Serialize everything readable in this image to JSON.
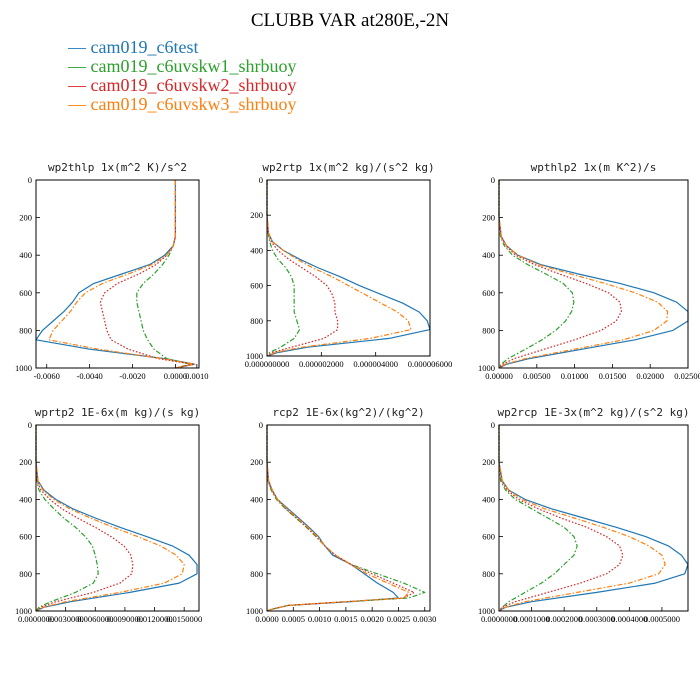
{
  "title": "CLUBB VAR at280E,-2N",
  "legend": [
    {
      "name": "cam019_c6test",
      "color": "#1f77b4"
    },
    {
      "name": "cam019_c6uvskw1_shrbuoy",
      "color": "#2ca02c"
    },
    {
      "name": "cam019_c6uvskw2_shrbuoy",
      "color": "#d62728"
    },
    {
      "name": "cam019_c6uvskw3_shrbuoy",
      "color": "#ff7f0e"
    }
  ],
  "chart_data": [
    {
      "type": "line",
      "title": "wp2thlp  1x(m^2 K)/s^2",
      "xlim": [
        -0.0065,
        0.0011
      ],
      "ylim": [
        0,
        1000
      ],
      "y_reversed": true,
      "xticks": [
        -0.006,
        -0.004,
        -0.002,
        0.0,
        0.001
      ],
      "xtick_labels": [
        "-0.0060",
        "-0.0040",
        "-0.0020",
        "0.0000",
        "0.0010"
      ],
      "yticks": [
        0,
        200,
        400,
        600,
        800,
        1000
      ],
      "ytick_labels": [
        "0",
        "200",
        "400",
        "600",
        "800",
        "1000"
      ],
      "y": [
        0,
        100,
        200,
        300,
        350,
        400,
        450,
        500,
        550,
        600,
        650,
        700,
        750,
        800,
        850,
        900,
        950,
        980,
        1000
      ],
      "series": [
        {
          "name": "cam019_c6test",
          "color": "#1f77b4",
          "dash": "solid",
          "x": [
            0,
            0,
            0,
            0,
            -0.0001,
            -0.0005,
            -0.0012,
            -0.0025,
            -0.0038,
            -0.0045,
            -0.0048,
            -0.0052,
            -0.0057,
            -0.0062,
            -0.0065,
            -0.004,
            -0.0005,
            0.0009,
            0.0
          ]
        },
        {
          "name": "cam019_c6uvskw1_shrbuoy",
          "color": "#2ca02c",
          "dash": "dashdot",
          "x": [
            0,
            0,
            0,
            0,
            -0.0001,
            -0.0003,
            -0.0006,
            -0.001,
            -0.0015,
            -0.0018,
            -0.0018,
            -0.0017,
            -0.0016,
            -0.0015,
            -0.0013,
            -0.001,
            -0.0004,
            0.0007,
            0.0
          ]
        },
        {
          "name": "cam019_c6uvskw2_shrbuoy",
          "color": "#d62728",
          "dash": "dotted",
          "x": [
            0,
            0,
            0,
            0,
            -0.0001,
            -0.0004,
            -0.0009,
            -0.0017,
            -0.0027,
            -0.0033,
            -0.0035,
            -0.0034,
            -0.0033,
            -0.0032,
            -0.003,
            -0.0022,
            -0.0008,
            0.0008,
            0.0
          ]
        },
        {
          "name": "cam019_c6uvskw3_shrbuoy",
          "color": "#ff7f0e",
          "dash": "dashdot",
          "x": [
            0,
            0,
            0,
            0,
            -0.0001,
            -0.0004,
            -0.0011,
            -0.0022,
            -0.0034,
            -0.0042,
            -0.0046,
            -0.0049,
            -0.0053,
            -0.0057,
            -0.0059,
            -0.0036,
            -0.0006,
            0.0009,
            0.0
          ]
        }
      ]
    },
    {
      "type": "line",
      "title": "wp2rtp  1x(m^2 kg)/(s^2 kg)",
      "xlim": [
        0,
        6e-06
      ],
      "ylim": [
        0,
        1000
      ],
      "y_reversed": true,
      "xticks": [
        0,
        2e-06,
        4e-06,
        6e-06
      ],
      "xtick_labels": [
        "0.000000000",
        "0.000002000",
        "0.000004000",
        "0.000006000"
      ],
      "yticks": [
        0,
        200,
        400,
        600,
        800,
        1000
      ],
      "ytick_labels": [
        "0",
        "200",
        "400",
        "600",
        "800",
        "1000"
      ],
      "y": [
        0,
        200,
        300,
        350,
        400,
        450,
        500,
        550,
        600,
        650,
        700,
        750,
        800,
        850,
        900,
        950,
        980,
        1000
      ],
      "series": [
        {
          "name": "cam019_c6test",
          "color": "#1f77b4",
          "dash": "solid",
          "x": [
            0,
            0,
            5e-08,
            2e-07,
            6e-07,
            1.2e-06,
            1.9e-06,
            2.7e-06,
            3.4e-06,
            4.2e-06,
            5e-06,
            5.6e-06,
            5.9e-06,
            6e-06,
            4.5e-06,
            1.5e-06,
            4e-07,
            0
          ]
        },
        {
          "name": "cam019_c6uvskw1_shrbuoy",
          "color": "#2ca02c",
          "dash": "dashdot",
          "x": [
            0,
            0,
            4e-08,
            1e-07,
            2e-07,
            4e-07,
            7e-07,
            9e-07,
            1e-06,
            1e-06,
            1e-06,
            1e-06,
            1.1e-06,
            1.2e-06,
            1e-06,
            5e-07,
            1e-07,
            0
          ]
        },
        {
          "name": "cam019_c6uvskw2_shrbuoy",
          "color": "#d62728",
          "dash": "dotted",
          "x": [
            0,
            0,
            5e-08,
            1.5e-07,
            4e-07,
            8e-07,
            1.3e-06,
            1.8e-06,
            2.2e-06,
            2.4e-06,
            2.5e-06,
            2.5e-06,
            2.6e-06,
            2.6e-06,
            2.1e-06,
            9e-07,
            2e-07,
            0
          ]
        },
        {
          "name": "cam019_c6uvskw3_shrbuoy",
          "color": "#ff7f0e",
          "dash": "dashdot",
          "x": [
            0,
            0,
            5e-08,
            2e-07,
            6e-07,
            1.1e-06,
            1.7e-06,
            2.4e-06,
            3e-06,
            3.6e-06,
            4.2e-06,
            4.8e-06,
            5.2e-06,
            5.3e-06,
            3.8e-06,
            1.3e-06,
            3e-07,
            0
          ]
        }
      ]
    },
    {
      "type": "line",
      "title": "wpthlp2  1x(m K^2)/s",
      "xlim": [
        0,
        0.025
      ],
      "ylim": [
        0,
        1000
      ],
      "y_reversed": true,
      "xticks": [
        0,
        0.005,
        0.01,
        0.015,
        0.02,
        0.025
      ],
      "xtick_labels": [
        "0.00000",
        "0.00500",
        "0.01000",
        "0.01500",
        "0.02000",
        "0.02500"
      ],
      "yticks": [
        0,
        200,
        400,
        600,
        800,
        1000
      ],
      "ytick_labels": [
        "0",
        "200",
        "400",
        "600",
        "800",
        "1000"
      ],
      "y": [
        0,
        200,
        300,
        350,
        400,
        450,
        500,
        550,
        600,
        650,
        700,
        750,
        800,
        850,
        900,
        950,
        980,
        1000
      ],
      "series": [
        {
          "name": "cam019_c6test",
          "color": "#1f77b4",
          "dash": "solid",
          "x": [
            0,
            0,
            0.0003,
            0.001,
            0.0025,
            0.0055,
            0.0105,
            0.016,
            0.0205,
            0.0235,
            0.025,
            0.025,
            0.023,
            0.018,
            0.011,
            0.004,
            0.001,
            0
          ]
        },
        {
          "name": "cam019_c6uvskw1_shrbuoy",
          "color": "#2ca02c",
          "dash": "dashdot",
          "x": [
            0,
            0,
            0.0002,
            0.0007,
            0.0018,
            0.0038,
            0.0062,
            0.0085,
            0.0097,
            0.0099,
            0.0096,
            0.0088,
            0.0075,
            0.0057,
            0.0035,
            0.0012,
            0.0003,
            0
          ]
        },
        {
          "name": "cam019_c6uvskw2_shrbuoy",
          "color": "#d62728",
          "dash": "dotted",
          "x": [
            0,
            0,
            0.0003,
            0.0009,
            0.0022,
            0.0047,
            0.008,
            0.0115,
            0.0145,
            0.016,
            0.0162,
            0.0155,
            0.0135,
            0.01,
            0.006,
            0.002,
            0.0005,
            0
          ]
        },
        {
          "name": "cam019_c6uvskw3_shrbuoy",
          "color": "#ff7f0e",
          "dash": "dashdot",
          "x": [
            0,
            0,
            0.0003,
            0.001,
            0.0025,
            0.0052,
            0.0095,
            0.014,
            0.018,
            0.021,
            0.0223,
            0.0222,
            0.0205,
            0.0165,
            0.01,
            0.0035,
            0.0008,
            0
          ]
        }
      ]
    },
    {
      "type": "line",
      "title": "wprtp2  1E-6x(m kg)/(s kg)",
      "xlim": [
        0,
        0.0165
      ],
      "ylim": [
        0,
        1000
      ],
      "y_reversed": true,
      "xticks": [
        0,
        0.003,
        0.006,
        0.009,
        0.012,
        0.015
      ],
      "xtick_labels": [
        "0.0000000",
        "0.0030000",
        "0.0060000",
        "0.0090000",
        "0.0120000",
        "0.0150000"
      ],
      "yticks": [
        0,
        200,
        400,
        600,
        800,
        1000
      ],
      "ytick_labels": [
        "0",
        "200",
        "400",
        "600",
        "800",
        "1000"
      ],
      "y": [
        0,
        200,
        300,
        350,
        400,
        450,
        500,
        550,
        600,
        650,
        700,
        750,
        800,
        850,
        900,
        950,
        980,
        1000
      ],
      "series": [
        {
          "name": "cam019_c6test",
          "color": "#1f77b4",
          "dash": "solid",
          "x": [
            0,
            0,
            0.0002,
            0.0008,
            0.002,
            0.0037,
            0.006,
            0.0085,
            0.0112,
            0.0138,
            0.0155,
            0.0163,
            0.0163,
            0.0145,
            0.0095,
            0.0035,
            0.0008,
            0
          ]
        },
        {
          "name": "cam019_c6uvskw1_shrbuoy",
          "color": "#2ca02c",
          "dash": "dashdot",
          "x": [
            0,
            0,
            0.0001,
            0.0003,
            0.0009,
            0.0018,
            0.0028,
            0.004,
            0.005,
            0.0057,
            0.006,
            0.0062,
            0.0063,
            0.0058,
            0.004,
            0.0015,
            0.0003,
            0
          ]
        },
        {
          "name": "cam019_c6uvskw2_shrbuoy",
          "color": "#d62728",
          "dash": "dotted",
          "x": [
            0,
            0,
            0.0001,
            0.0005,
            0.0014,
            0.0026,
            0.0042,
            0.006,
            0.0076,
            0.0089,
            0.0096,
            0.0098,
            0.0097,
            0.0085,
            0.0058,
            0.002,
            0.0005,
            0
          ]
        },
        {
          "name": "cam019_c6uvskw3_shrbuoy",
          "color": "#ff7f0e",
          "dash": "dashdot",
          "x": [
            0,
            0,
            0.0002,
            0.0007,
            0.0018,
            0.0034,
            0.0055,
            0.0078,
            0.0103,
            0.0126,
            0.0142,
            0.015,
            0.0148,
            0.013,
            0.0085,
            0.003,
            0.0007,
            0
          ]
        }
      ]
    },
    {
      "type": "line",
      "title": "rcp2  1E-6x(kg^2)/(kg^2)",
      "xlim": [
        0,
        0.0031
      ],
      "ylim": [
        0,
        1000
      ],
      "y_reversed": true,
      "xticks": [
        0,
        0.0005,
        0.001,
        0.0015,
        0.002,
        0.0025,
        0.003
      ],
      "xtick_labels": [
        "0.0000",
        "0.0005",
        "0.0010",
        "0.0015",
        "0.0020",
        "0.0025",
        "0.0030"
      ],
      "yticks": [
        0,
        200,
        400,
        600,
        800,
        1000
      ],
      "ytick_labels": [
        "0",
        "200",
        "400",
        "600",
        "800",
        "1000"
      ],
      "y": [
        0,
        200,
        300,
        350,
        400,
        450,
        500,
        550,
        600,
        650,
        700,
        750,
        800,
        850,
        900,
        930,
        950,
        970,
        990,
        1000
      ],
      "series": [
        {
          "name": "cam019_c6test",
          "color": "#1f77b4",
          "dash": "solid",
          "x": [
            0,
            0,
            3e-05,
            0.0001,
            0.0002,
            0.0004,
            0.0006,
            0.0008,
            0.00098,
            0.0011,
            0.00125,
            0.0016,
            0.00185,
            0.0021,
            0.0024,
            0.0025,
            0.0016,
            0.0004,
            0.0001,
            0
          ]
        },
        {
          "name": "cam019_c6uvskw1_shrbuoy",
          "color": "#2ca02c",
          "dash": "dashdot",
          "x": [
            0,
            0,
            2e-05,
            8e-05,
            0.00018,
            0.00035,
            0.00055,
            0.00075,
            0.00093,
            0.0011,
            0.0013,
            0.0016,
            0.0021,
            0.0026,
            0.003,
            0.0027,
            0.0015,
            0.0004,
            0.0001,
            0
          ]
        },
        {
          "name": "cam019_c6uvskw2_shrbuoy",
          "color": "#d62728",
          "dash": "dotted",
          "x": [
            0,
            0,
            2e-05,
            9e-05,
            0.0002,
            0.00036,
            0.00056,
            0.00076,
            0.00094,
            0.0011,
            0.0013,
            0.0016,
            0.002,
            0.0024,
            0.0028,
            0.0026,
            0.0015,
            0.0004,
            0.0001,
            0
          ]
        },
        {
          "name": "cam019_c6uvskw3_shrbuoy",
          "color": "#ff7f0e",
          "dash": "dashdot",
          "x": [
            0,
            0,
            3e-05,
            0.0001,
            0.0002,
            0.00038,
            0.00058,
            0.00078,
            0.00096,
            0.0011,
            0.0013,
            0.0016,
            0.0019,
            0.0023,
            0.0027,
            0.0026,
            0.0015,
            0.0004,
            0.0001,
            0
          ]
        }
      ]
    },
    {
      "type": "line",
      "title": "wp2rcp  1E-3x(m^2 kg)/(s^2 kg)",
      "xlim": [
        0,
        0.00058
      ],
      "ylim": [
        0,
        1000
      ],
      "y_reversed": true,
      "xticks": [
        0,
        0.0001,
        0.0002,
        0.0003,
        0.0004,
        0.0005
      ],
      "xtick_labels": [
        "0.0000000",
        "0.0001000",
        "0.0002000",
        "0.0003000",
        "0.0004000",
        "0.0005000"
      ],
      "yticks": [
        0,
        200,
        400,
        600,
        800,
        1000
      ],
      "ytick_labels": [
        "0",
        "200",
        "400",
        "600",
        "800",
        "1000"
      ],
      "y": [
        0,
        200,
        300,
        350,
        400,
        450,
        500,
        550,
        600,
        650,
        700,
        750,
        800,
        850,
        900,
        950,
        980,
        1000
      ],
      "series": [
        {
          "name": "cam019_c6test",
          "color": "#1f77b4",
          "dash": "solid",
          "x": [
            0,
            0,
            1e-05,
            3e-05,
            8e-05,
            0.00016,
            0.00026,
            0.00036,
            0.00045,
            0.00052,
            0.00056,
            0.00058,
            0.00057,
            0.00048,
            0.0003,
            0.0001,
            2e-05,
            0
          ]
        },
        {
          "name": "cam019_c6uvskw1_shrbuoy",
          "color": "#2ca02c",
          "dash": "dashdot",
          "x": [
            0,
            0,
            5e-06,
            2e-05,
            5e-05,
            0.0001,
            0.00015,
            0.0002,
            0.00023,
            0.00024,
            0.00023,
            0.0002,
            0.00017,
            0.00013,
            8e-05,
            3e-05,
            1e-05,
            0
          ]
        },
        {
          "name": "cam019_c6uvskw2_shrbuoy",
          "color": "#d62728",
          "dash": "dotted",
          "x": [
            0,
            0,
            8e-06,
            2.5e-05,
            6e-05,
            0.00012,
            0.00019,
            0.00027,
            0.00033,
            0.00037,
            0.00038,
            0.00037,
            0.00033,
            0.00025,
            0.00015,
            5e-05,
            1e-05,
            0
          ]
        },
        {
          "name": "cam019_c6uvskw3_shrbuoy",
          "color": "#ff7f0e",
          "dash": "dashdot",
          "x": [
            0,
            0,
            1e-05,
            3e-05,
            7e-05,
            0.00014,
            0.00023,
            0.00032,
            0.0004,
            0.00046,
            0.0005,
            0.00051,
            0.00049,
            0.0004,
            0.00024,
            8e-05,
            2e-05,
            0
          ]
        }
      ]
    }
  ]
}
